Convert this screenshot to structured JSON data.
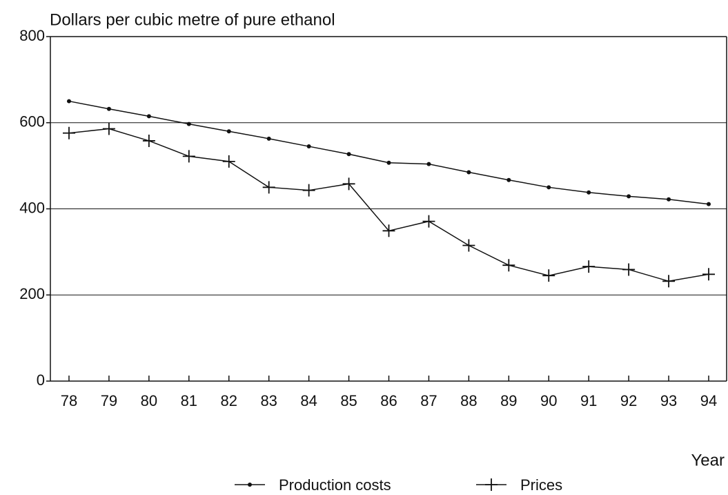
{
  "chart_data": {
    "type": "line",
    "title": "Dollars per cubic metre of pure ethanol",
    "x_label": "Year",
    "categories": [
      "78",
      "79",
      "80",
      "81",
      "82",
      "83",
      "84",
      "85",
      "86",
      "87",
      "88",
      "89",
      "90",
      "91",
      "92",
      "93",
      "94"
    ],
    "series": [
      {
        "name": "Production costs",
        "color": "#111111",
        "marker": "dot",
        "values": [
          650,
          632,
          615,
          597,
          580,
          563,
          545,
          527,
          507,
          504,
          485,
          467,
          450,
          438,
          429,
          422,
          411
        ]
      },
      {
        "name": "Prices",
        "color": "#111111",
        "marker": "plus",
        "values": [
          576,
          586,
          558,
          522,
          510,
          450,
          443,
          458,
          349,
          371,
          315,
          269,
          245,
          266,
          259,
          232,
          248
        ]
      }
    ],
    "ylim": [
      0,
      800
    ],
    "yticks": [
      0,
      200,
      400,
      600,
      800
    ],
    "grid": true
  }
}
